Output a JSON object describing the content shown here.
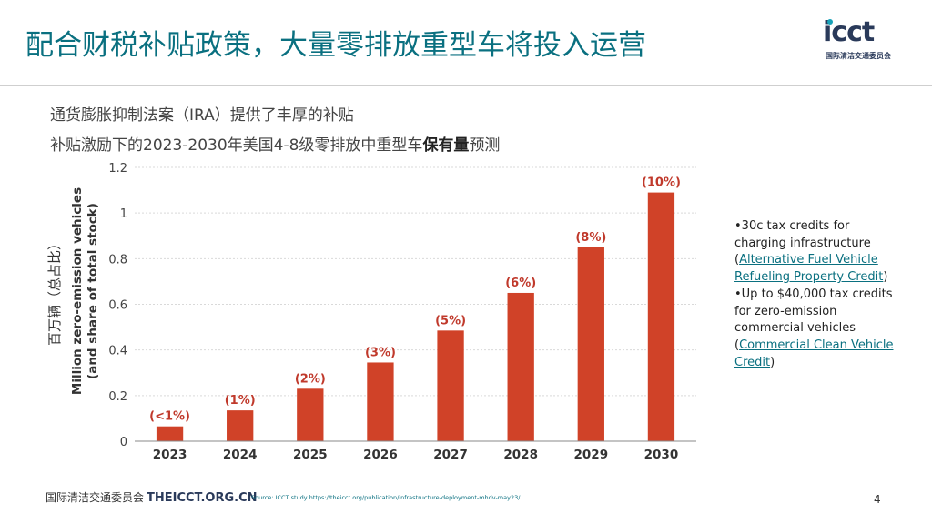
{
  "title": "配合财税补贴政策，大量零排放重型车将投入运营",
  "logo": {
    "word": "icct",
    "sub": "国际清洁交通委员会"
  },
  "subtitle_line1": "通货膨胀抑制法案（IRA）提供了丰厚的补贴",
  "subtitle_line2_pre": "补贴激励下的2023-2030年美国4-8级零排放中重型车",
  "subtitle_line2_bold": "保有量",
  "subtitle_line2_post": "预测",
  "chart_data": {
    "type": "bar",
    "title": "",
    "categories": [
      "2023",
      "2024",
      "2025",
      "2026",
      "2027",
      "2028",
      "2029",
      "2030"
    ],
    "values": [
      0.065,
      0.135,
      0.23,
      0.345,
      0.485,
      0.65,
      0.85,
      1.09
    ],
    "data_labels": [
      "(<1%)",
      "(1%)",
      "(2%)",
      "(3%)",
      "(5%)",
      "(6%)",
      "(8%)",
      "(10%)"
    ],
    "yticks": [
      "0",
      "0.2",
      "0.4",
      "0.6",
      "0.8",
      "1",
      "1.2"
    ],
    "ylim": [
      0,
      1.2
    ],
    "ylabel_line1": "Million zero-emission vehicles",
    "ylabel_line2": "(and share of total stock)",
    "ylabel_cn": "百万辆（总占比）",
    "xlabel": "",
    "grid": true,
    "bar_color": "#d04228",
    "label_color": "#c0392b"
  },
  "notes": {
    "b1_pre": "•30c tax credits for charging infrastructure (",
    "b1_link": "Alternative Fuel Vehicle Refueling Property Credit",
    "b1_post": ")",
    "b2_pre": "•Up to $40,000 tax credits for zero-emission commercial vehicles (",
    "b2_link": "Commercial Clean Vehicle Credit",
    "b2_post": ")"
  },
  "footer": {
    "org": "国际清洁交通委员会",
    "site": "THEICCT.ORG.CN",
    "source": "Source:  ICCT study  https://theicct.org/publication/infrastructure-deployment-mhdv-may23/",
    "page": "4"
  },
  "colors": {
    "title": "#0a7080",
    "accent": "#17a2b8",
    "bar": "#d04228"
  }
}
